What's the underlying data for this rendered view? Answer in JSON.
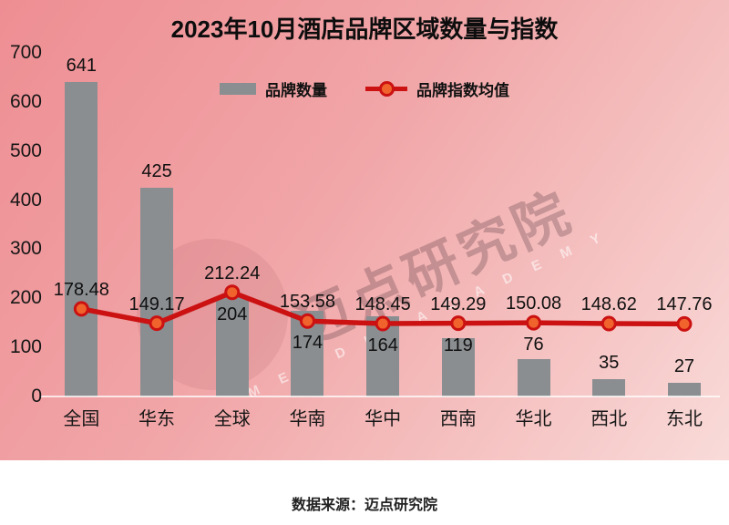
{
  "title": "2023年10月酒店品牌区域数量与指数",
  "legend": {
    "bar_label": "品牌数量",
    "line_label": "品牌指数均值"
  },
  "watermark": {
    "text": "迈点研究院",
    "subtext": "M E A D I N   A C A D E M Y"
  },
  "source_text": "数据来源：迈点研究院",
  "colors": {
    "background_top": "#ee8e93",
    "background_bottom": "#f8dbd9",
    "bar": "#8a8e91",
    "line": "#cb1112",
    "marker_fill": "#f0632c",
    "text": "#111111"
  },
  "chart_data": {
    "type": "bar",
    "subtype": "bar-line-combo",
    "title": "2023年10月酒店品牌区域数量与指数",
    "categories": [
      "全国",
      "华东",
      "全球",
      "华南",
      "华中",
      "西南",
      "华北",
      "西北",
      "东北"
    ],
    "series": [
      {
        "name": "品牌数量",
        "type": "bar",
        "values": [
          641,
          425,
          204,
          174,
          164,
          119,
          76,
          35,
          27
        ]
      },
      {
        "name": "品牌指数均值",
        "type": "line",
        "values": [
          178.48,
          149.17,
          212.24,
          153.58,
          148.45,
          149.29,
          150.08,
          148.62,
          147.76
        ]
      }
    ],
    "xlabel": "",
    "ylabel": "",
    "ylim": [
      0,
      700
    ],
    "yticks": [
      0,
      100,
      200,
      300,
      400,
      500,
      600,
      700
    ],
    "grid": false,
    "legend_position": "top-center",
    "value_labels": true
  }
}
